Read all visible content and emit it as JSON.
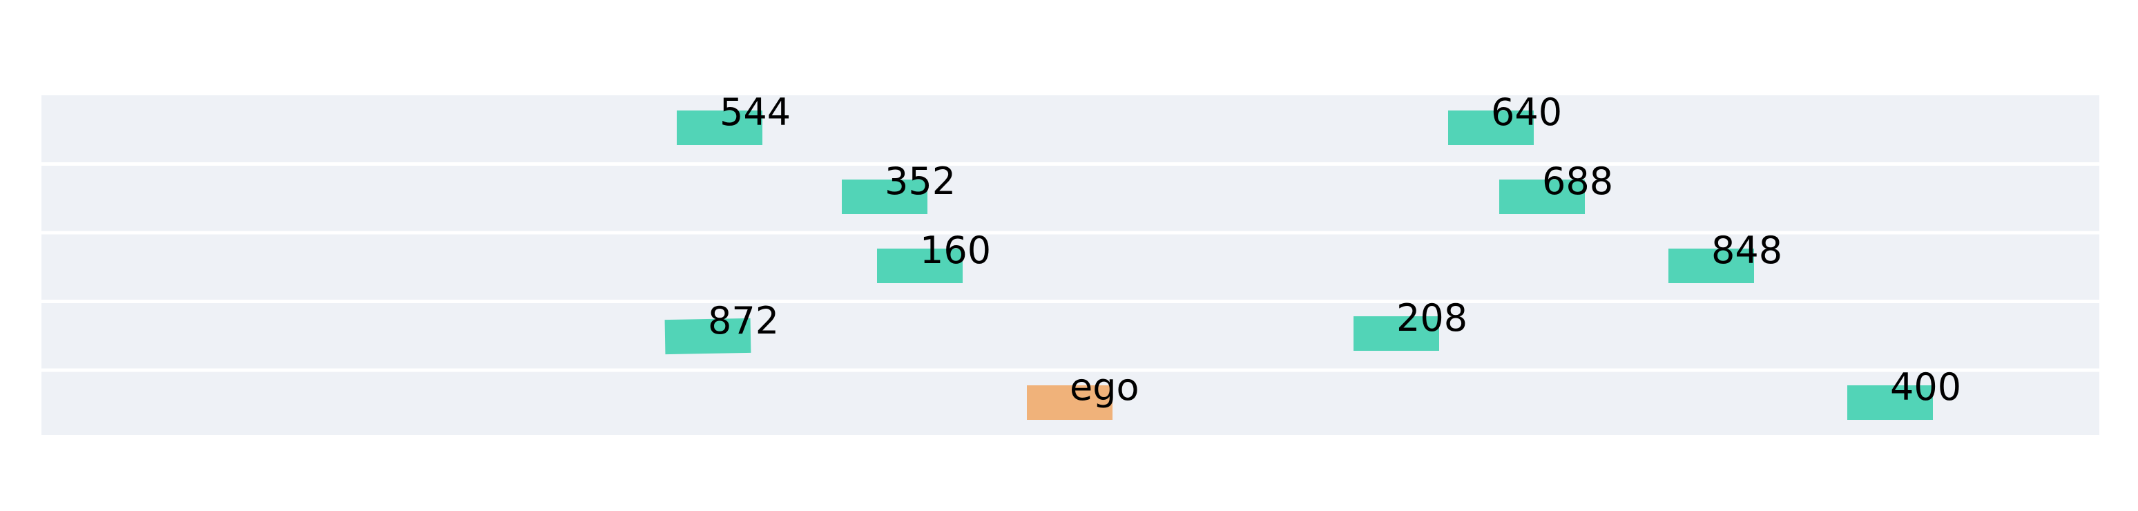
{
  "colors": {
    "background": "#ffffff",
    "lane": "#eef1f6",
    "lane_divider": "#ffffff",
    "other_vehicle": "#52d4b7",
    "ego_vehicle": "#f0b27a",
    "label": "#000000"
  },
  "lanes": 5,
  "vehicles": [
    {
      "id": "v544",
      "label": "544",
      "lane": 0,
      "kind": "other"
    },
    {
      "id": "v640",
      "label": "640",
      "lane": 0,
      "kind": "other"
    },
    {
      "id": "v352",
      "label": "352",
      "lane": 1,
      "kind": "other"
    },
    {
      "id": "v688",
      "label": "688",
      "lane": 1,
      "kind": "other"
    },
    {
      "id": "v160",
      "label": "160",
      "lane": 2,
      "kind": "other"
    },
    {
      "id": "v848",
      "label": "848",
      "lane": 2,
      "kind": "other"
    },
    {
      "id": "v872",
      "label": "872",
      "lane": 3,
      "kind": "other"
    },
    {
      "id": "v208",
      "label": "208",
      "lane": 3,
      "kind": "other"
    },
    {
      "id": "ego",
      "label": "ego",
      "lane": 4,
      "kind": "ego"
    },
    {
      "id": "v400",
      "label": "400",
      "lane": 4,
      "kind": "other"
    }
  ]
}
